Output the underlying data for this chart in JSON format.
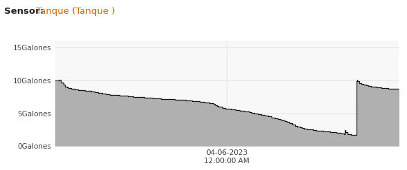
{
  "title_sensor_label": "Sensor:",
  "title_sensor_value": " Tanque (Tanque )",
  "title_fontsize": 9.5,
  "xlabel_line1": "04-06-2023",
  "xlabel_line2": "12:00:00 AM",
  "ylabel_ticks": [
    "0Galones",
    "5Galones",
    "10Galones",
    "15Galones"
  ],
  "ytick_values": [
    0,
    5,
    10,
    15
  ],
  "ylim": [
    0,
    16
  ],
  "fill_color": "#b0b0b0",
  "line_color": "#111111",
  "background_color": "#ffffff",
  "plot_bg_color": "#f8f8f8",
  "grid_color": "#dddddd",
  "x_data": [
    0.0,
    0.012,
    0.018,
    0.025,
    0.03,
    0.035,
    0.04,
    0.048,
    0.052,
    0.058,
    0.062,
    0.068,
    0.074,
    0.08,
    0.088,
    0.095,
    0.105,
    0.115,
    0.125,
    0.138,
    0.148,
    0.16,
    0.175,
    0.188,
    0.2,
    0.212,
    0.22,
    0.228,
    0.238,
    0.248,
    0.26,
    0.272,
    0.285,
    0.295,
    0.308,
    0.318,
    0.328,
    0.338,
    0.348,
    0.36,
    0.37,
    0.38,
    0.39,
    0.398,
    0.405,
    0.412,
    0.42,
    0.428,
    0.435,
    0.442,
    0.45,
    0.458,
    0.462,
    0.465,
    0.468,
    0.472,
    0.476,
    0.48,
    0.488,
    0.495,
    0.505,
    0.512,
    0.518,
    0.525,
    0.532,
    0.538,
    0.545,
    0.552,
    0.558,
    0.565,
    0.572,
    0.58,
    0.59,
    0.6,
    0.61,
    0.62,
    0.63,
    0.64,
    0.648,
    0.655,
    0.662,
    0.668,
    0.675,
    0.682,
    0.69,
    0.698,
    0.705,
    0.712,
    0.718,
    0.725,
    0.732,
    0.74,
    0.75,
    0.76,
    0.77,
    0.78,
    0.79,
    0.8,
    0.81,
    0.818,
    0.825,
    0.83,
    0.835,
    0.84,
    0.842,
    0.843,
    0.845,
    0.85,
    0.86,
    0.865,
    0.87,
    0.875,
    0.878,
    0.879,
    0.88,
    0.885,
    0.892,
    0.898,
    0.905,
    0.912,
    0.92,
    0.928,
    0.935,
    0.942,
    0.95,
    0.96,
    0.97,
    0.98,
    1.0
  ],
  "y_data": [
    10.0,
    10.1,
    9.7,
    9.3,
    9.0,
    8.9,
    8.8,
    8.75,
    8.7,
    8.65,
    8.6,
    8.55,
    8.5,
    8.5,
    8.45,
    8.4,
    8.3,
    8.2,
    8.1,
    8.0,
    7.9,
    7.8,
    7.75,
    7.7,
    7.65,
    7.6,
    7.55,
    7.5,
    7.5,
    7.45,
    7.4,
    7.35,
    7.3,
    7.25,
    7.2,
    7.2,
    7.15,
    7.1,
    7.05,
    7.0,
    7.0,
    6.95,
    6.9,
    6.85,
    6.8,
    6.8,
    6.75,
    6.7,
    6.65,
    6.6,
    6.55,
    6.5,
    6.45,
    6.3,
    6.2,
    6.1,
    6.05,
    5.95,
    5.8,
    5.7,
    5.65,
    5.6,
    5.55,
    5.5,
    5.45,
    5.4,
    5.35,
    5.3,
    5.25,
    5.2,
    5.1,
    5.0,
    4.9,
    4.75,
    4.6,
    4.5,
    4.35,
    4.2,
    4.1,
    4.0,
    3.9,
    3.8,
    3.7,
    3.5,
    3.3,
    3.1,
    3.0,
    2.9,
    2.8,
    2.7,
    2.6,
    2.5,
    2.4,
    2.35,
    2.3,
    2.25,
    2.2,
    2.15,
    2.1,
    2.05,
    2.0,
    1.95,
    1.9,
    1.85,
    2.2,
    2.4,
    2.1,
    1.8,
    1.75,
    1.72,
    1.7,
    1.68,
    9.9,
    10.05,
    9.85,
    9.6,
    9.4,
    9.3,
    9.2,
    9.1,
    9.05,
    9.0,
    8.95,
    8.9,
    8.85,
    8.8,
    8.75,
    8.7,
    8.65
  ]
}
